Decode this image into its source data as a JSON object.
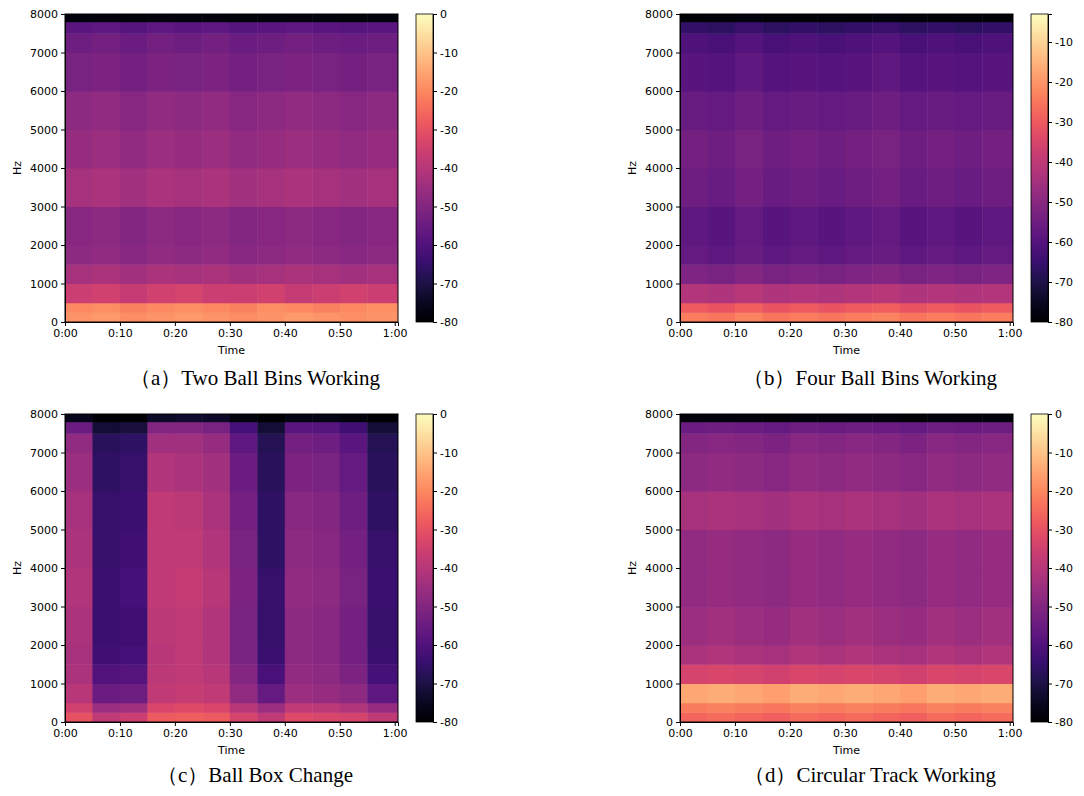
{
  "chart_data": [
    {
      "type": "heatmap",
      "title": "（a）Two Ball Bins Working",
      "x_label": "Time",
      "y_label": "Hz",
      "color": "magma",
      "xlim": [
        0,
        60.6
      ],
      "ylim": [
        0,
        8000
      ],
      "xticks": [
        {
          "value": 0,
          "label": "0:00"
        },
        {
          "value": 10,
          "label": "0:10"
        },
        {
          "value": 20,
          "label": "0:20"
        },
        {
          "value": 30,
          "label": "0:30"
        },
        {
          "value": 40,
          "label": "0:40"
        },
        {
          "value": 50,
          "label": "0:50"
        },
        {
          "value": 60,
          "label": "1:00"
        }
      ],
      "yticks": [
        0,
        1000,
        2000,
        3000,
        4000,
        5000,
        6000,
        7000,
        8000
      ],
      "colorbar": {
        "range": [
          -80,
          0
        ],
        "ticks": [
          0,
          -10,
          -20,
          -30,
          -40,
          -50,
          -60,
          -70,
          -80
        ]
      },
      "x_edges": [
        0,
        5,
        10,
        15,
        20,
        25,
        30,
        35,
        40,
        45,
        50,
        55,
        60.6
      ],
      "y_edges": [
        0,
        250,
        500,
        1000,
        1500,
        2000,
        3000,
        4000,
        5000,
        6000,
        7000,
        7500,
        7800,
        8000
      ],
      "z": [
        [
          -18,
          -17,
          -19,
          -18,
          -17,
          -18,
          -19,
          -18,
          -17,
          -18,
          -19,
          -18
        ],
        [
          -20,
          -19,
          -21,
          -20,
          -19,
          -20,
          -21,
          -19,
          -20,
          -21,
          -20,
          -19
        ],
        [
          -36,
          -35,
          -37,
          -35,
          -34,
          -36,
          -36,
          -35,
          -37,
          -36,
          -35,
          -36
        ],
        [
          -43,
          -42,
          -44,
          -42,
          -43,
          -42,
          -44,
          -43,
          -42,
          -43,
          -44,
          -43
        ],
        [
          -48,
          -47,
          -49,
          -47,
          -48,
          -47,
          -49,
          -48,
          -47,
          -48,
          -49,
          -48
        ],
        [
          -49,
          -48,
          -50,
          -48,
          -49,
          -48,
          -50,
          -49,
          -48,
          -49,
          -50,
          -49
        ],
        [
          -43,
          -42,
          -44,
          -42,
          -43,
          -42,
          -44,
          -43,
          -42,
          -43,
          -44,
          -43
        ],
        [
          -46,
          -45,
          -47,
          -45,
          -46,
          -45,
          -47,
          -46,
          -45,
          -46,
          -47,
          -46
        ],
        [
          -48,
          -47,
          -49,
          -47,
          -48,
          -47,
          -49,
          -48,
          -47,
          -48,
          -49,
          -48
        ],
        [
          -52,
          -51,
          -53,
          -51,
          -52,
          -51,
          -53,
          -52,
          -51,
          -52,
          -53,
          -52
        ],
        [
          -54,
          -53,
          -55,
          -53,
          -54,
          -53,
          -55,
          -54,
          -53,
          -54,
          -55,
          -54
        ],
        [
          -58,
          -57,
          -59,
          -57,
          -58,
          -57,
          -59,
          -58,
          -57,
          -58,
          -59,
          -58
        ],
        [
          -78,
          -78,
          -79,
          -78,
          -78,
          -78,
          -79,
          -78,
          -78,
          -78,
          -79,
          -78
        ]
      ]
    },
    {
      "type": "heatmap",
      "title": "（b）Four Ball Bins Working",
      "x_label": "Time",
      "y_label": "Hz",
      "color": "magma",
      "xlim": [
        0,
        60.6
      ],
      "ylim": [
        0,
        8000
      ],
      "xticks": [
        {
          "value": 0,
          "label": "0:00"
        },
        {
          "value": 10,
          "label": "0:10"
        },
        {
          "value": 20,
          "label": "0:20"
        },
        {
          "value": 30,
          "label": "0:30"
        },
        {
          "value": 40,
          "label": "0:40"
        },
        {
          "value": 50,
          "label": "0:50"
        },
        {
          "value": 60,
          "label": "1:00"
        }
      ],
      "yticks": [
        0,
        1000,
        2000,
        3000,
        4000,
        5000,
        6000,
        7000,
        8000
      ],
      "colorbar": {
        "range": [
          -80,
          -3
        ],
        "ticks": [
          -10,
          -20,
          -30,
          -40,
          -50,
          -60,
          -70,
          -80
        ]
      },
      "x_edges": [
        0,
        5,
        10,
        15,
        20,
        25,
        30,
        35,
        40,
        45,
        50,
        55,
        60.6
      ],
      "y_edges": [
        0,
        250,
        500,
        1000,
        1500,
        2000,
        3000,
        4000,
        5000,
        6000,
        7000,
        7500,
        7800,
        8000
      ],
      "z": [
        [
          -24,
          -25,
          -23,
          -25,
          -24,
          -25,
          -24,
          -23,
          -25,
          -24,
          -25,
          -24
        ],
        [
          -30,
          -31,
          -29,
          -31,
          -30,
          -31,
          -30,
          -29,
          -31,
          -30,
          -31,
          -30
        ],
        [
          -42,
          -43,
          -41,
          -43,
          -42,
          -43,
          -42,
          -41,
          -43,
          -42,
          -43,
          -42
        ],
        [
          -52,
          -53,
          -51,
          -53,
          -52,
          -53,
          -52,
          -51,
          -53,
          -52,
          -53,
          -52
        ],
        [
          -57,
          -58,
          -56,
          -58,
          -57,
          -58,
          -57,
          -56,
          -58,
          -57,
          -58,
          -57
        ],
        [
          -58,
          -59,
          -57,
          -59,
          -58,
          -59,
          -58,
          -57,
          -59,
          -58,
          -59,
          -58
        ],
        [
          -55,
          -56,
          -54,
          -56,
          -55,
          -56,
          -55,
          -54,
          -56,
          -55,
          -56,
          -55
        ],
        [
          -54,
          -55,
          -53,
          -55,
          -54,
          -55,
          -54,
          -53,
          -55,
          -54,
          -55,
          -54
        ],
        [
          -56,
          -57,
          -55,
          -57,
          -56,
          -57,
          -56,
          -55,
          -57,
          -56,
          -57,
          -56
        ],
        [
          -59,
          -60,
          -58,
          -60,
          -59,
          -60,
          -59,
          -58,
          -60,
          -59,
          -60,
          -59
        ],
        [
          -61,
          -62,
          -60,
          -62,
          -61,
          -62,
          -61,
          -60,
          -62,
          -61,
          -62,
          -61
        ],
        [
          -66,
          -67,
          -65,
          -67,
          -66,
          -67,
          -66,
          -65,
          -67,
          -66,
          -67,
          -66
        ],
        [
          -79,
          -79,
          -78,
          -79,
          -79,
          -79,
          -79,
          -78,
          -79,
          -79,
          -79,
          -79
        ]
      ]
    },
    {
      "type": "heatmap",
      "title": "（c）Ball Box Change",
      "x_label": "Time",
      "y_label": "Hz",
      "color": "magma",
      "xlim": [
        0,
        60.6
      ],
      "ylim": [
        0,
        8000
      ],
      "xticks": [
        {
          "value": 0,
          "label": "0:00"
        },
        {
          "value": 10,
          "label": "0:10"
        },
        {
          "value": 20,
          "label": "0:20"
        },
        {
          "value": 30,
          "label": "0:30"
        },
        {
          "value": 40,
          "label": "0:40"
        },
        {
          "value": 50,
          "label": "0:50"
        },
        {
          "value": 60,
          "label": "1:00"
        }
      ],
      "yticks": [
        0,
        1000,
        2000,
        3000,
        4000,
        5000,
        6000,
        7000,
        8000
      ],
      "colorbar": {
        "range": [
          -80,
          0
        ],
        "ticks": [
          0,
          -10,
          -20,
          -30,
          -40,
          -50,
          -60,
          -70,
          -80
        ]
      },
      "x_edges": [
        0,
        5,
        10,
        15,
        20,
        25,
        30,
        35,
        40,
        45,
        50,
        55,
        60.6
      ],
      "y_edges": [
        0,
        250,
        500,
        1000,
        1500,
        2000,
        3000,
        4000,
        5000,
        6000,
        7000,
        7500,
        7800,
        8000
      ],
      "z": [
        [
          -30,
          -38,
          -36,
          -28,
          -27,
          -28,
          -34,
          -38,
          -32,
          -33,
          -34,
          -38
        ],
        [
          -35,
          -45,
          -44,
          -33,
          -32,
          -33,
          -40,
          -45,
          -38,
          -39,
          -41,
          -46
        ],
        [
          -40,
          -55,
          -54,
          -38,
          -37,
          -38,
          -47,
          -56,
          -45,
          -46,
          -48,
          -57
        ],
        [
          -42,
          -60,
          -59,
          -39,
          -38,
          -40,
          -50,
          -61,
          -47,
          -48,
          -51,
          -62
        ],
        [
          -43,
          -63,
          -62,
          -40,
          -38,
          -41,
          -52,
          -64,
          -48,
          -49,
          -53,
          -64
        ],
        [
          -42,
          -64,
          -63,
          -39,
          -38,
          -41,
          -52,
          -65,
          -48,
          -49,
          -53,
          -65
        ],
        [
          -41,
          -64,
          -62,
          -38,
          -37,
          -40,
          -51,
          -65,
          -47,
          -48,
          -52,
          -64
        ],
        [
          -42,
          -65,
          -63,
          -38,
          -38,
          -41,
          -52,
          -66,
          -48,
          -49,
          -53,
          -65
        ],
        [
          -43,
          -65,
          -64,
          -38,
          -39,
          -42,
          -53,
          -66,
          -49,
          -50,
          -54,
          -66
        ],
        [
          -45,
          -66,
          -65,
          -41,
          -42,
          -44,
          -55,
          -67,
          -51,
          -52,
          -56,
          -67
        ],
        [
          -47,
          -67,
          -66,
          -44,
          -44,
          -46,
          -57,
          -68,
          -53,
          -54,
          -58,
          -68
        ],
        [
          -55,
          -72,
          -71,
          -50,
          -50,
          -52,
          -62,
          -72,
          -58,
          -59,
          -63,
          -72
        ],
        [
          -76,
          -80,
          -80,
          -74,
          -73,
          -74,
          -78,
          -80,
          -77,
          -77,
          -78,
          -80
        ]
      ]
    },
    {
      "type": "heatmap",
      "title": "（d）Circular Track Working",
      "x_label": "Time",
      "y_label": "Hz",
      "color": "magma",
      "xlim": [
        0,
        60.6
      ],
      "ylim": [
        0,
        8000
      ],
      "xticks": [
        {
          "value": 0,
          "label": "0:00"
        },
        {
          "value": 10,
          "label": "0:10"
        },
        {
          "value": 20,
          "label": "0:20"
        },
        {
          "value": 30,
          "label": "0:30"
        },
        {
          "value": 40,
          "label": "0:40"
        },
        {
          "value": 50,
          "label": "0:50"
        },
        {
          "value": 60,
          "label": "1:00"
        }
      ],
      "yticks": [
        0,
        1000,
        2000,
        3000,
        4000,
        5000,
        6000,
        7000,
        8000
      ],
      "colorbar": {
        "range": [
          -80,
          0
        ],
        "ticks": [
          0,
          -10,
          -20,
          -30,
          -40,
          -50,
          -60,
          -70,
          -80
        ]
      },
      "x_edges": [
        0,
        5,
        10,
        15,
        20,
        25,
        30,
        35,
        40,
        45,
        50,
        55,
        60.6
      ],
      "y_edges": [
        0,
        250,
        500,
        1000,
        1500,
        2000,
        3000,
        4000,
        5000,
        6000,
        7000,
        7500,
        7800,
        8000
      ],
      "z": [
        [
          -26,
          -25,
          -26,
          -27,
          -25,
          -26,
          -25,
          -26,
          -27,
          -25,
          -26,
          -25
        ],
        [
          -22,
          -21,
          -22,
          -23,
          -21,
          -22,
          -21,
          -22,
          -23,
          -21,
          -22,
          -21
        ],
        [
          -15,
          -14,
          -15,
          -16,
          -14,
          -15,
          -14,
          -15,
          -16,
          -14,
          -15,
          -14
        ],
        [
          -34,
          -33,
          -34,
          -35,
          -33,
          -34,
          -33,
          -34,
          -35,
          -33,
          -34,
          -33
        ],
        [
          -42,
          -41,
          -42,
          -43,
          -41,
          -42,
          -41,
          -42,
          -43,
          -41,
          -42,
          -41
        ],
        [
          -45,
          -44,
          -45,
          -46,
          -44,
          -45,
          -44,
          -45,
          -46,
          -44,
          -45,
          -44
        ],
        [
          -47,
          -46,
          -47,
          -48,
          -46,
          -47,
          -46,
          -47,
          -48,
          -46,
          -47,
          -46
        ],
        [
          -47,
          -46,
          -47,
          -48,
          -46,
          -47,
          -46,
          -47,
          -48,
          -46,
          -47,
          -46
        ],
        [
          -43,
          -42,
          -43,
          -44,
          -42,
          -43,
          -42,
          -43,
          -44,
          -42,
          -43,
          -42
        ],
        [
          -48,
          -47,
          -48,
          -49,
          -47,
          -48,
          -47,
          -48,
          -49,
          -47,
          -48,
          -47
        ],
        [
          -50,
          -49,
          -50,
          -51,
          -49,
          -50,
          -49,
          -50,
          -51,
          -49,
          -50,
          -49
        ],
        [
          -55,
          -54,
          -55,
          -56,
          -54,
          -55,
          -54,
          -55,
          -56,
          -54,
          -55,
          -54
        ],
        [
          -78,
          -78,
          -78,
          -79,
          -78,
          -78,
          -78,
          -78,
          -79,
          -78,
          -78,
          -78
        ]
      ]
    }
  ]
}
